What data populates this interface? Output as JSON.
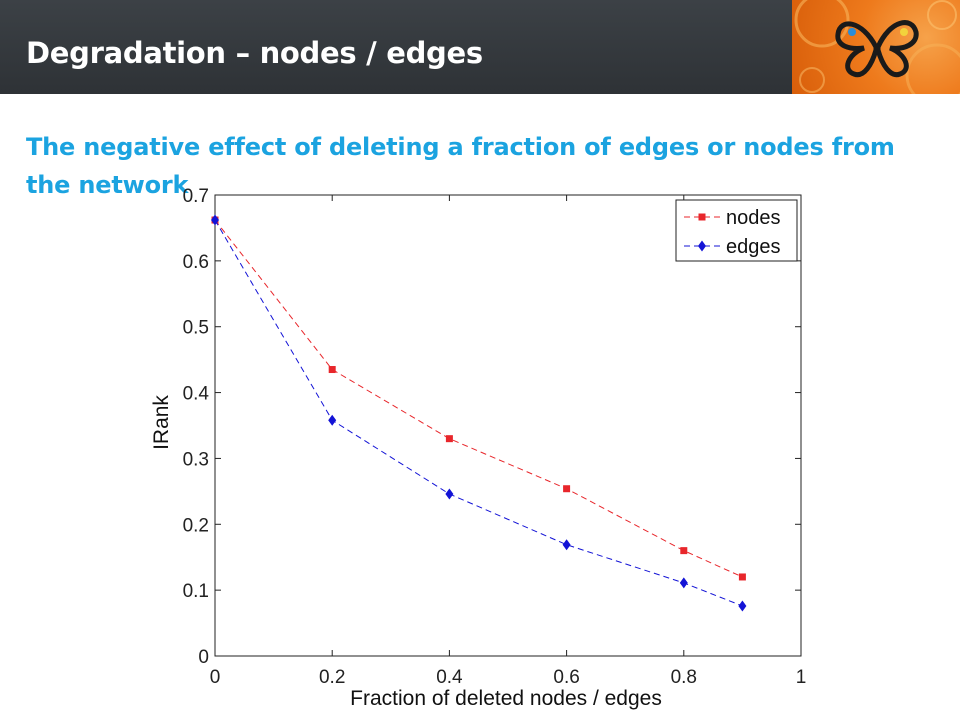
{
  "slide": {
    "title": "Degradation – nodes / edges",
    "subtitle": "The negative effect of deleting a fraction of edges or nodes from the network"
  },
  "logo": {
    "icon": "butterfly-logo-icon",
    "background": "#ee7a1c"
  },
  "chart_data": {
    "type": "line",
    "title": "",
    "xlabel": "Fraction of deleted nodes / edges",
    "ylabel": "IRank",
    "xlim": [
      0,
      1
    ],
    "ylim": [
      0,
      0.7
    ],
    "xticks": [
      "0",
      "0.2",
      "0.4",
      "0.6",
      "0.8",
      "1"
    ],
    "yticks": [
      "0",
      "0.1",
      "0.2",
      "0.3",
      "0.4",
      "0.5",
      "0.6",
      "0.7"
    ],
    "grid": false,
    "legend_position": "top-right",
    "x": [
      0,
      0.2,
      0.4,
      0.6,
      0.8,
      0.9
    ],
    "series": [
      {
        "name": "nodes",
        "marker": "square",
        "color": "#e8262b",
        "values": [
          0.662,
          0.435,
          0.33,
          0.254,
          0.16,
          0.12
        ]
      },
      {
        "name": "edges",
        "marker": "diamond",
        "color": "#1313d6",
        "values": [
          0.662,
          0.358,
          0.246,
          0.169,
          0.111,
          0.076
        ]
      }
    ]
  }
}
